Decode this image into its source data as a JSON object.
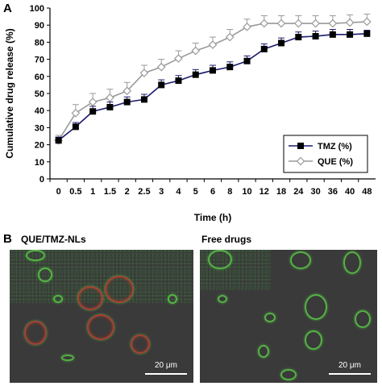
{
  "panel_a_label": "A",
  "panel_b_label": "B",
  "chart_data": {
    "type": "line",
    "xlabel": "Time (h)",
    "ylabel": "Cumulative drug release (%)",
    "categories": [
      "0",
      "0.5",
      "1",
      "1.5",
      "2",
      "2.5",
      "3",
      "4",
      "5",
      "6",
      "8",
      "10",
      "12",
      "18",
      "24",
      "30",
      "36",
      "40",
      "48"
    ],
    "ylim": [
      0,
      100
    ],
    "yticks": [
      0,
      10,
      20,
      30,
      40,
      50,
      60,
      70,
      80,
      90,
      100
    ],
    "legend_position": "right",
    "series": [
      {
        "name": "TMZ (%)",
        "color": "#1a1a6e",
        "marker": "filled-square",
        "values": [
          22.5,
          30.5,
          39.5,
          42,
          45,
          46.5,
          55,
          57.5,
          61,
          63.5,
          65.5,
          69,
          76,
          79.5,
          83,
          83.5,
          84.5,
          84.5,
          85
        ],
        "errors": [
          2,
          2.5,
          3,
          3,
          3,
          3,
          3,
          3,
          3,
          3,
          3,
          3,
          3,
          3,
          3,
          3,
          3,
          3,
          2
        ]
      },
      {
        "name": "QUE (%)",
        "color": "#9a9a9a",
        "marker": "open-diamond",
        "values": [
          22.5,
          38.5,
          45,
          47.5,
          51.5,
          62,
          65.5,
          70.5,
          75,
          78.5,
          83,
          89,
          91,
          91,
          91,
          91,
          91,
          91.5,
          92
        ],
        "errors": [
          3,
          5,
          5,
          5,
          5,
          4.5,
          4.5,
          4.5,
          4.5,
          4.5,
          4.5,
          4.5,
          4.5,
          4.5,
          4.5,
          4.5,
          4.5,
          4.5,
          4.5
        ]
      }
    ]
  },
  "micrographs": [
    {
      "title": "QUE/TMZ-NLs",
      "scale_label": "20 μm",
      "icon": "fluorescence-micrograph"
    },
    {
      "title": "Free drugs",
      "scale_label": "20 μm",
      "icon": "fluorescence-micrograph"
    }
  ]
}
